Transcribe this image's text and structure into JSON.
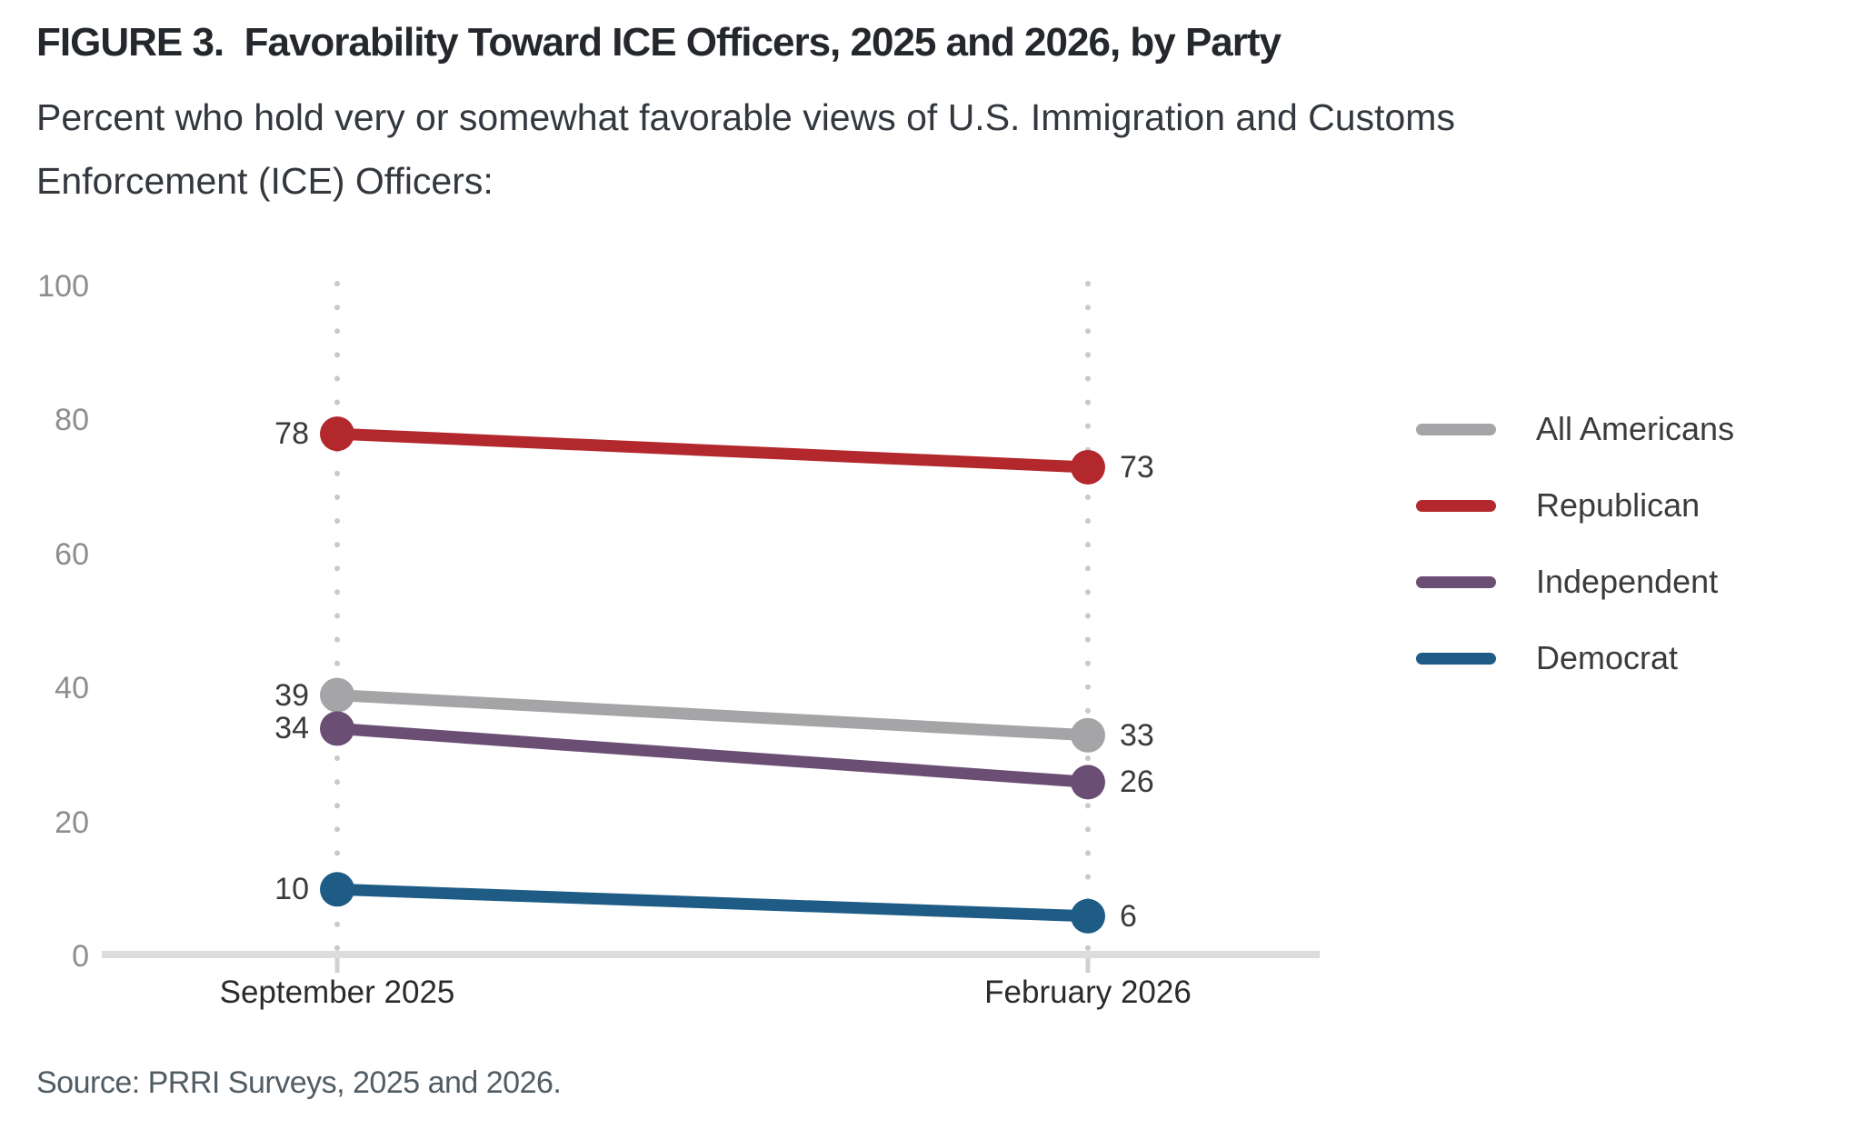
{
  "figure": {
    "title": "FIGURE 3.  Favorability Toward ICE Officers, 2025 and 2026, by Party",
    "subtitle": "Percent who hold very or somewhat favorable views of U.S. Immigration and Customs Enforcement (ICE) Officers:",
    "source": "Source: PRRI Surveys, 2025 and 2026."
  },
  "chart_data": {
    "type": "line",
    "title": "Favorability Toward ICE Officers, 2025 and 2026, by Party",
    "x": [
      "September 2025",
      "February 2026"
    ],
    "series": [
      {
        "name": "All Americans",
        "color": "#a5a5a7",
        "values": [
          39,
          33
        ]
      },
      {
        "name": "Republican",
        "color": "#b2282d",
        "values": [
          78,
          73
        ]
      },
      {
        "name": "Independent",
        "color": "#6b4e73",
        "values": [
          34,
          26
        ]
      },
      {
        "name": "Democrat",
        "color": "#1e5c86",
        "values": [
          10,
          6
        ]
      }
    ],
    "ylim": [
      0,
      100
    ],
    "yticks": [
      0,
      20,
      40,
      60,
      80,
      100
    ],
    "point_labels": true,
    "grid": "dotted-vertical-at-each-x",
    "legend_position": "right",
    "axis_color": "#dcdcdc",
    "gridline_color": "#c9c9c9",
    "tick_label_color": "#8d8d8d"
  }
}
